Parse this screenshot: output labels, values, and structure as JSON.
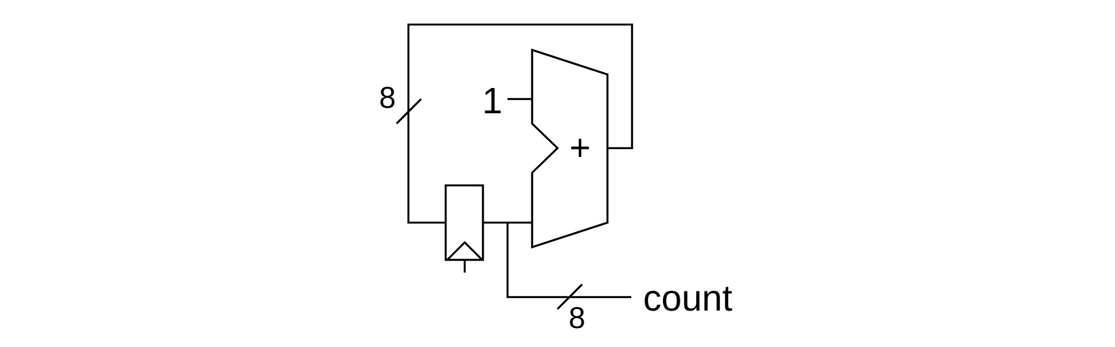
{
  "labels": {
    "feedback_width": "8",
    "constant_input": "1",
    "adder_operator": "+",
    "output_width": "8",
    "output_name": "count"
  },
  "colors": {
    "stroke": "#000000",
    "background": "#ffffff"
  }
}
